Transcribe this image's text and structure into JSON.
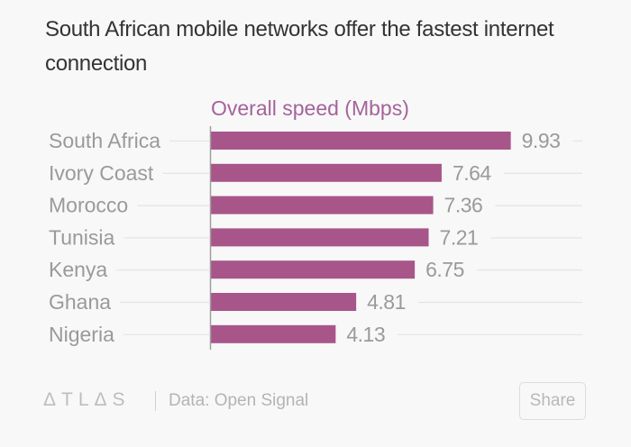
{
  "header": {
    "title": "South African mobile networks offer the fastest internet connection"
  },
  "chart_data": {
    "type": "bar",
    "orientation": "horizontal",
    "title": "South African mobile networks offer the fastest internet connection",
    "series_label": "Overall speed (Mbps)",
    "categories": [
      "South Africa",
      "Ivory Coast",
      "Morocco",
      "Tunisia",
      "Kenya",
      "Ghana",
      "Nigeria"
    ],
    "values": [
      9.93,
      7.64,
      7.36,
      7.21,
      6.75,
      4.81,
      4.13
    ],
    "value_labels": [
      "9.93",
      "7.64",
      "7.36",
      "7.21",
      "6.75",
      "4.81",
      "4.13"
    ],
    "xlabel": "",
    "ylabel": "",
    "xlim": [
      0,
      10
    ],
    "grid": false,
    "legend": "none",
    "colors": {
      "bar": "#a8558a",
      "series_label": "#a5639a",
      "category_text": "#9a9a9a",
      "value_text": "#9a9a9a",
      "leader_line": "#e4e4e4",
      "axis": "#9e9e9e"
    }
  },
  "footer": {
    "logo": "ΔTLΔS",
    "source": "Data:  Open Signal",
    "share_label": "Share"
  }
}
